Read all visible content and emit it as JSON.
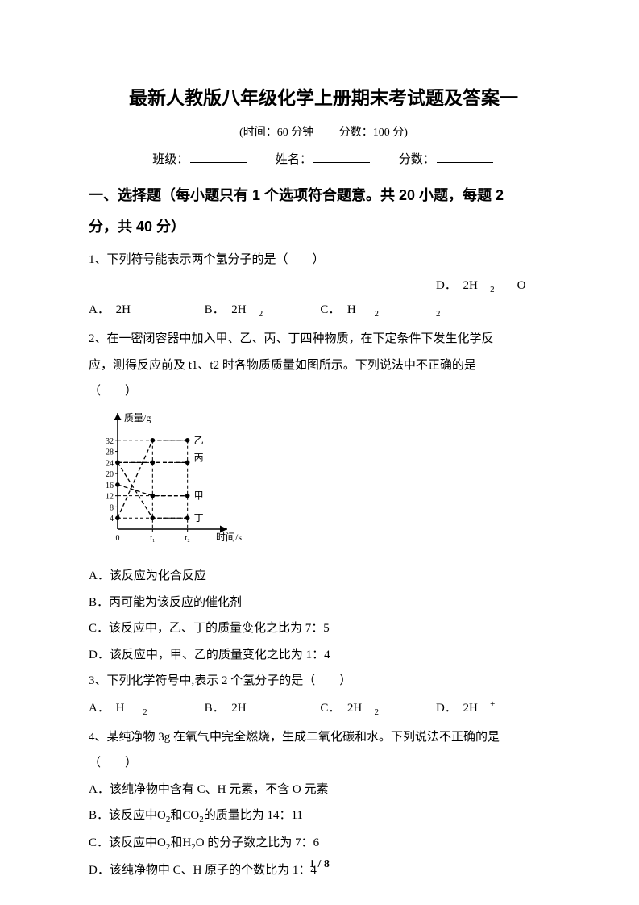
{
  "title": "最新人教版八年级化学上册期末考试题及答案一",
  "subtitle_time_label": "(时间：",
  "subtitle_time_value": "60 分钟",
  "subtitle_score_label": "分数：",
  "subtitle_score_value": "100 分)",
  "info": {
    "class_label": "班级：",
    "name_label": "姓名：",
    "score_label": "分数："
  },
  "section1_line1": "一、选择题（每小题只有 1 个选项符合题意。共 20 小题，每题 2",
  "section1_line2": "分，共 40 分）",
  "q1": {
    "stem": "1、下列符号能表示两个氢分子的是（　　）",
    "A_label": "A．",
    "A_txt": "2H",
    "B_label": "B．",
    "B_txt_pre": "2H",
    "B_sub": "2",
    "C_label": "C．",
    "C_txt_pre": "H",
    "C_sub": "2",
    "D_label": "D．",
    "D_txt_pre": "2H",
    "D_sub1": "2",
    "D_mid": "O",
    "D_sub2": "2"
  },
  "q2": {
    "line1": "2、在一密闭容器中加入甲、乙、丙、丁四种物质，在下定条件下发生化学反",
    "line2": "应，测得反应前及 t1、t2 时各物质质量如图所示。下列说法中不正确的是",
    "line3": "（　　）",
    "A": "A．该反应为化合反应",
    "B": "B．丙可能为该反应的催化剂",
    "C": "C．该反应中，乙、丁的质量变化之比为 7：5",
    "D": "D．该反应中，甲、乙的质量变化之比为 1：4"
  },
  "q3": {
    "stem": "3、下列化学符号中,表示 2 个氢分子的是（　　）",
    "A_label": "A．",
    "A_pre": "H",
    "A_sub": "2",
    "B_label": "B．",
    "B_txt": "2H",
    "C_label": "C．",
    "C_pre": "2H",
    "C_sub": "2",
    "D_label": "D．",
    "D_pre": "2H",
    "D_sup": "+"
  },
  "q4": {
    "line1": "4、某纯净物 3g 在氧气中完全燃烧，生成二氧化碳和水。下列说法不正确的是",
    "line2": "（　　）",
    "A": "A．该纯净物中含有 C、H 元素，不含 O 元素",
    "B_pre": "B．该反应中",
    "B_O2_O": "O",
    "B_O2_sub": "2",
    "B_mid": "和",
    "B_CO2_C": "CO",
    "B_CO2_sub": "2",
    "B_post": "的质量比为 14：11",
    "C_pre": "C．该反应中",
    "C_O2_O": "O",
    "C_O2_sub": "2",
    "C_mid": "和",
    "C_H2O_H": "H",
    "C_H2O_sub": "2",
    "C_H2O_O": "O",
    "C_post": " 的分子数之比为 7：6",
    "D": "D．该纯净物中 C、H 原子的个数比为 1：4"
  },
  "chart": {
    "type": "line",
    "width": 190,
    "height": 170,
    "background": "#ffffff",
    "axis_color": "#000000",
    "dash_color": "#000000",
    "label_fontsize": 12,
    "y_label": "质量/g",
    "x_label": "时间/s",
    "y_ticks": [
      "4",
      "8",
      "12",
      "16",
      "20",
      "24",
      "28",
      "32"
    ],
    "y_tick_values": [
      4,
      8,
      12,
      16,
      20,
      24,
      28,
      32
    ],
    "y_max": 36,
    "x_ticks": [
      "0",
      "t₁",
      "t₂"
    ],
    "x_tick_positions": [
      0,
      1,
      2
    ],
    "x_max": 3,
    "series": {
      "jia": {
        "label": "甲",
        "points": [
          [
            0,
            16
          ],
          [
            1,
            12
          ],
          [
            2,
            12
          ]
        ],
        "end_y": 12
      },
      "yi": {
        "label": "乙",
        "points": [
          [
            0,
            4
          ],
          [
            1,
            32
          ],
          [
            2,
            32
          ]
        ],
        "end_y": 32
      },
      "bing": {
        "label": "丙",
        "points": [
          [
            0,
            24
          ],
          [
            1,
            24
          ],
          [
            2,
            24
          ]
        ],
        "end_y": 24,
        "flat": true,
        "offset_y": -6
      },
      "ding": {
        "label": "丁",
        "points": [
          [
            0,
            24
          ],
          [
            1,
            4
          ],
          [
            2,
            4
          ]
        ],
        "end_y": 4
      }
    },
    "marker_r": 2.8
  },
  "page_num": "1 / 8"
}
